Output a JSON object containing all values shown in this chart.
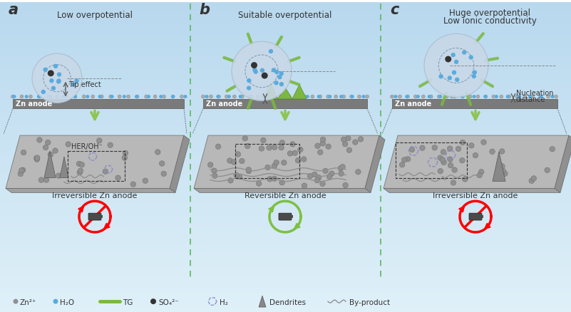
{
  "bg_top": "#cfe4f0",
  "bg_bottom": "#dff0f8",
  "title_a": "Low overpotential",
  "title_b": "Suitable overpotential",
  "title_c1": "Huge overpotential",
  "title_c2": "Low ionic conductivity",
  "label_a": "a",
  "label_b": "b",
  "label_c": "c",
  "zn_label": "Zn anode",
  "sphere_color": "#c8d8e8",
  "sphere_edge": "#aabccc",
  "water_color": "#5aabdd",
  "so4_color": "#333333",
  "tg_color": "#7ab840",
  "tg_dark": "#5a9030",
  "arrow_color": "#8dc454",
  "irrev_label": "Irreversible Zn anode",
  "rev_label": "Reversible Zn anode",
  "legend_zn2": "Zn²⁺",
  "legend_h2o": "H₂O",
  "legend_tg": "TG",
  "legend_so4": "SO₄²⁻",
  "legend_h2": "H₂",
  "legend_dend": "Dendrites",
  "legend_bp": "By-product",
  "tip_label": "Tip effect",
  "her_label": "HER/OH⁻",
  "nuc_label1": "Nucleation",
  "nuc_label2": "distance",
  "sep_color": "#5ab860",
  "plate_face": "#b8b8b8",
  "plate_side": "#909090",
  "plate_bottom": "#a0a0a0",
  "anode_color": "#7a7a7a",
  "dot_color": "#909090",
  "dend_color": "#888888",
  "byp_color": "#909090",
  "h2_color": "#8888cc"
}
